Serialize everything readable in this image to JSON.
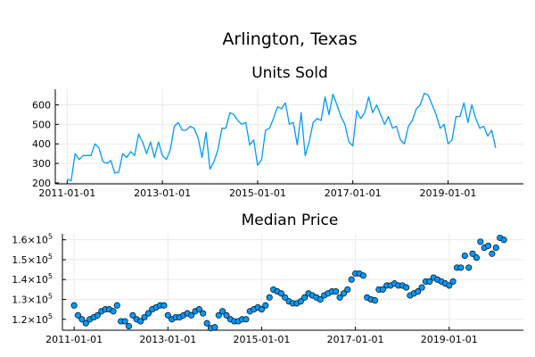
{
  "page_title": "Arlington, Texas",
  "chart_data": [
    {
      "type": "line",
      "title": "Units Sold",
      "xlabel": "",
      "ylabel": "",
      "color": "#009AFA",
      "x_ticks": [
        "2011-01-01",
        "2013-01-01",
        "2015-01-01",
        "2017-01-01",
        "2019-01-01"
      ],
      "y_ticks": [
        "200",
        "300",
        "400",
        "500",
        "600"
      ],
      "xlim": [
        "2010-10-01",
        "2020-08-01"
      ],
      "ylim": [
        195,
        680
      ],
      "grid": true,
      "legend": "none",
      "x_start": "2011-01-01",
      "x_step": "month",
      "values": [
        220,
        210,
        350,
        320,
        340,
        340,
        340,
        400,
        380,
        310,
        300,
        315,
        250,
        255,
        350,
        330,
        360,
        340,
        450,
        410,
        350,
        410,
        330,
        410,
        340,
        320,
        370,
        490,
        510,
        470,
        470,
        490,
        480,
        430,
        330,
        460,
        270,
        310,
        370,
        480,
        480,
        560,
        550,
        520,
        500,
        510,
        395,
        420,
        290,
        320,
        470,
        480,
        530,
        590,
        580,
        610,
        500,
        510,
        395,
        560,
        340,
        410,
        510,
        530,
        520,
        640,
        550,
        655,
        600,
        540,
        500,
        410,
        390,
        570,
        530,
        560,
        640,
        560,
        600,
        550,
        500,
        540,
        480,
        490,
        420,
        400,
        490,
        520,
        580,
        600,
        660,
        650,
        600,
        550,
        480,
        500,
        400,
        420,
        540,
        540,
        610,
        510,
        600,
        530,
        480,
        490,
        440,
        470,
        380
      ]
    },
    {
      "type": "scatter",
      "title": "Median Price",
      "xlabel": "",
      "ylabel": "",
      "color": "#009AFA",
      "x_ticks": [
        "2011-01-01",
        "2013-01-01",
        "2015-01-01",
        "2017-01-01",
        "2019-01-01"
      ],
      "y_tick_mantissas": [
        "1.2",
        "1.3",
        "1.4",
        "1.5",
        "1.6"
      ],
      "y_tick_base": "10",
      "y_tick_exponent": "5",
      "xlim": [
        "2010-10-01",
        "2020-08-01"
      ],
      "ylim": [
        114500,
        163000
      ],
      "grid": true,
      "legend": "none",
      "x_start": "2011-01-01",
      "x_step": "month",
      "values": [
        127000,
        122000,
        120000,
        118000,
        120000,
        121000,
        122000,
        124000,
        125000,
        125000,
        124000,
        127000,
        119000,
        119000,
        116500,
        122000,
        120000,
        119000,
        121000,
        123000,
        125000,
        126000,
        127000,
        127000,
        122000,
        120000,
        121000,
        121000,
        122000,
        123000,
        122000,
        124000,
        125000,
        123000,
        118000,
        115500,
        116000,
        122000,
        124000,
        122000,
        120000,
        119000,
        119000,
        120000,
        120000,
        124000,
        125000,
        126000,
        125000,
        127000,
        131000,
        135000,
        134000,
        133000,
        131000,
        129000,
        128000,
        128000,
        129000,
        131000,
        133000,
        132000,
        131000,
        130000,
        132000,
        133000,
        134000,
        134000,
        131000,
        133000,
        135000,
        140000,
        143000,
        143000,
        142000,
        131000,
        130000,
        129500,
        135000,
        135000,
        137000,
        137000,
        138000,
        137000,
        137000,
        136000,
        132000,
        133000,
        134000,
        136000,
        139000,
        139000,
        141000,
        140000,
        139000,
        138000,
        137000,
        139000,
        146000,
        146000,
        152000,
        146000,
        153000,
        151000,
        159000,
        156000,
        157000,
        153000,
        156000,
        161000,
        160000
      ]
    }
  ]
}
